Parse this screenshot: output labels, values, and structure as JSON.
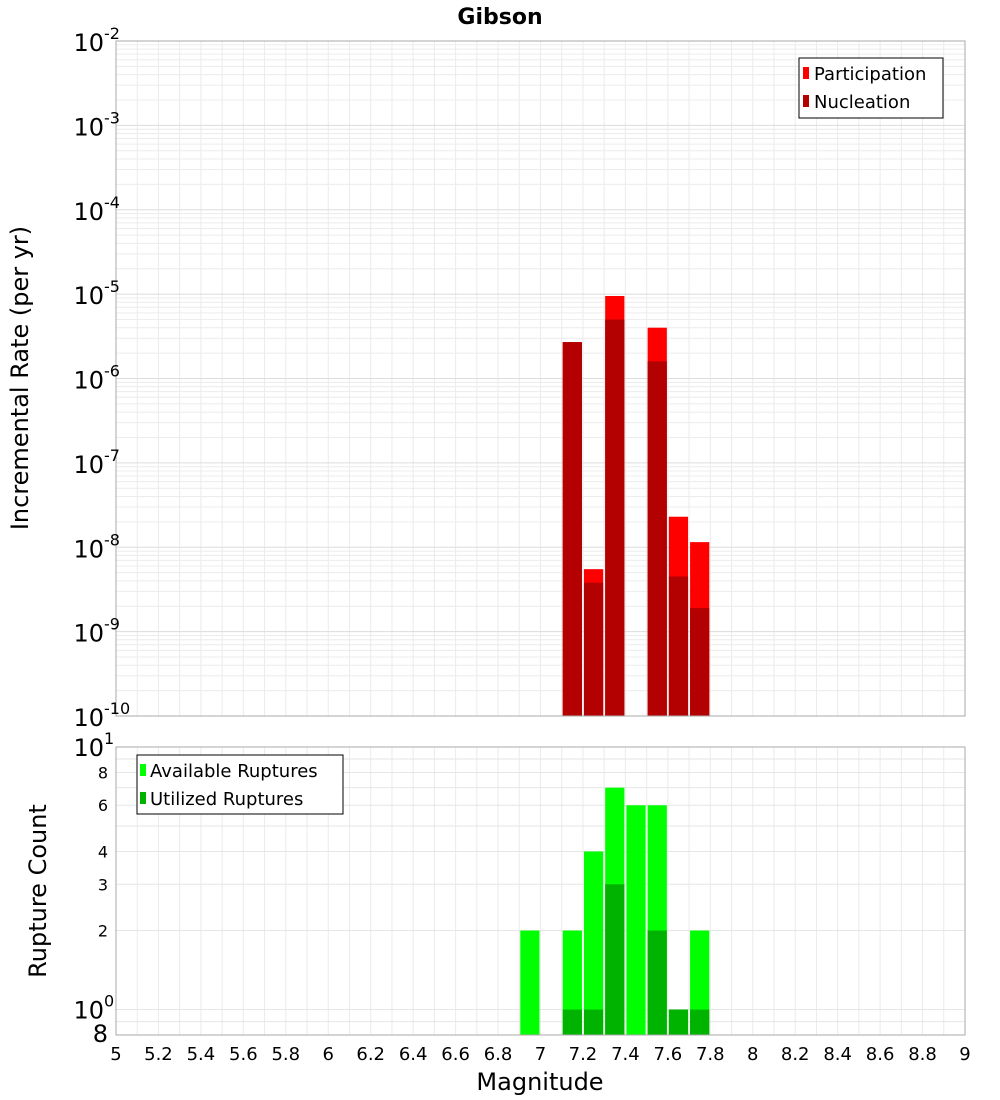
{
  "chart_data": [
    {
      "type": "bar",
      "title": "Gibson",
      "ylabel": "Incremental Rate (per yr)",
      "xlabel": "",
      "xlim": [
        5,
        9
      ],
      "ylim": [
        1e-10,
        0.01
      ],
      "yscale": "log",
      "grid": true,
      "legend_position": "top-right",
      "y_ticks": [
        {
          "base": "10",
          "exp": "-2"
        },
        {
          "base": "10",
          "exp": "-3"
        },
        {
          "base": "10",
          "exp": "-4"
        },
        {
          "base": "10",
          "exp": "-5"
        },
        {
          "base": "10",
          "exp": "-6"
        },
        {
          "base": "10",
          "exp": "-7"
        },
        {
          "base": "10",
          "exp": "-8"
        },
        {
          "base": "10",
          "exp": "-9"
        },
        {
          "base": "10",
          "exp": "-10"
        }
      ],
      "bar_width": 0.1,
      "series": [
        {
          "name": "Participation",
          "color": "#ff0000",
          "x": [
            7.15,
            7.25,
            7.35,
            7.55,
            7.65,
            7.75
          ],
          "values": [
            2.7e-06,
            5.5e-09,
            9.5e-06,
            4e-06,
            2.3e-08,
            1.15e-08
          ]
        },
        {
          "name": "Nucleation",
          "color": "#b30000",
          "x": [
            7.15,
            7.25,
            7.35,
            7.55,
            7.65,
            7.75
          ],
          "values": [
            2.7e-06,
            3.8e-09,
            5e-06,
            1.6e-06,
            4.5e-09,
            1.9e-09
          ]
        }
      ]
    },
    {
      "type": "bar",
      "title": "",
      "ylabel": "Rupture Count",
      "xlabel": "Magnitude",
      "xlim": [
        5,
        9
      ],
      "ylim": [
        0.8,
        10
      ],
      "yscale": "log",
      "grid": true,
      "legend_position": "top-left",
      "x_tick_labels": [
        "5",
        "5.2",
        "5.4",
        "5.6",
        "5.8",
        "6",
        "6.2",
        "6.4",
        "6.6",
        "6.8",
        "7",
        "7.2",
        "7.4",
        "7.6",
        "7.8",
        "8",
        "8.2",
        "8.4",
        "8.6",
        "8.8",
        "9"
      ],
      "y_major_ticks": [
        {
          "base": "10",
          "exp": "1"
        },
        {
          "base": "10",
          "exp": "0"
        }
      ],
      "y_minor_ticks": [
        "8",
        "6",
        "4",
        "3",
        "2",
        "8"
      ],
      "bar_width": 0.1,
      "series": [
        {
          "name": "Available Ruptures",
          "color": "#00ff00",
          "x": [
            6.95,
            7.15,
            7.25,
            7.35,
            7.45,
            7.55,
            7.65,
            7.75
          ],
          "values": [
            2,
            2,
            4,
            7,
            6,
            6,
            1,
            2
          ]
        },
        {
          "name": "Utilized Ruptures",
          "color": "#00b300",
          "x": [
            7.15,
            7.25,
            7.35,
            7.55,
            7.65,
            7.75
          ],
          "values": [
            1,
            1,
            3,
            2,
            1,
            1
          ]
        }
      ]
    }
  ]
}
